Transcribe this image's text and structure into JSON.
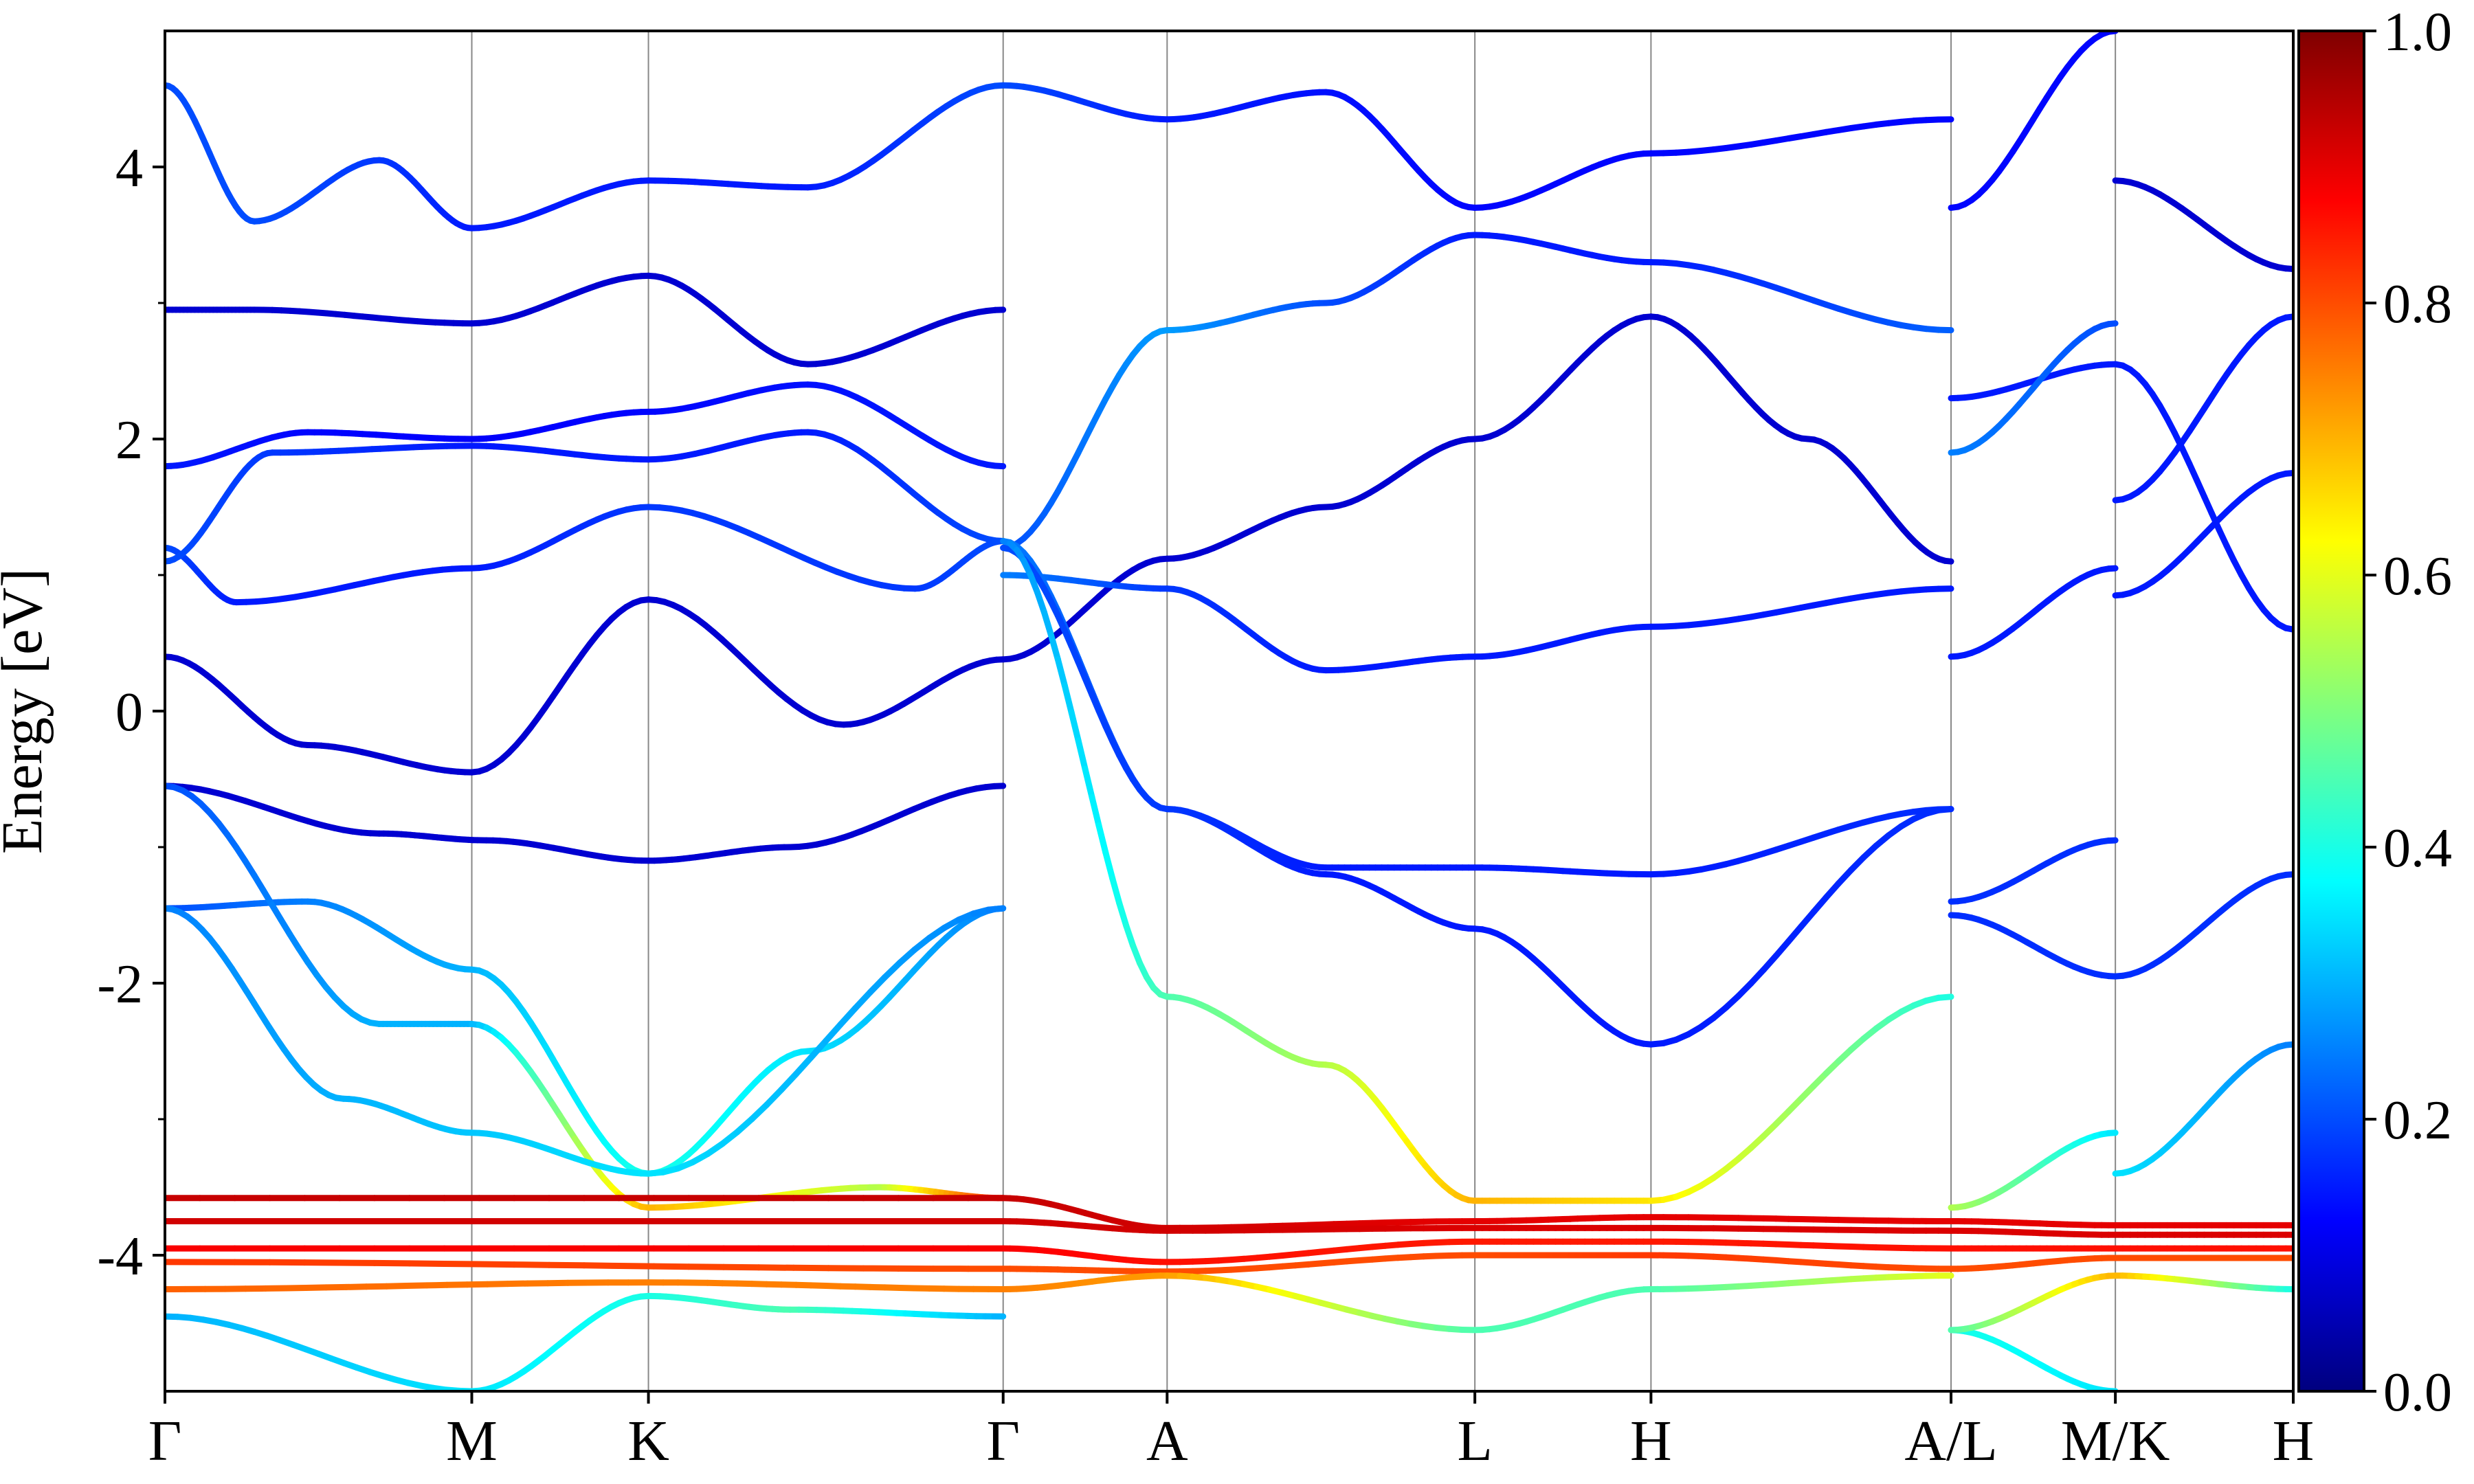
{
  "chart_data": {
    "type": "line",
    "title": "",
    "xlabel": "",
    "ylabel": "Energy [eV]",
    "ylim": [
      -5,
      5
    ],
    "y_ticks": [
      "4",
      "2",
      "0",
      "-2",
      "-4"
    ],
    "y_tick_values": [
      4,
      2,
      0,
      -2,
      -4
    ],
    "y_minor_ticks": [
      3,
      1,
      -1,
      -3
    ],
    "x_ticks": [
      "Γ",
      "M",
      "K",
      "Γ",
      "A",
      "L",
      "H",
      "A/L",
      "M/K",
      "H"
    ],
    "x_tick_positions": [
      0,
      0.1718,
      0.2707,
      0.4693,
      0.5611,
      0.7334,
      0.832,
      1.0,
      1.092,
      1.1916
    ],
    "grid": "vertical lines at high-symmetry points",
    "colormap": "jet",
    "colorbar": {
      "label": "",
      "range": [
        0.0,
        1.0
      ],
      "ticks": [
        "0.0",
        "0.2",
        "0.4",
        "0.6",
        "0.8",
        "1.0"
      ],
      "stops": [
        "#00007f",
        "#0000ff",
        "#007fff",
        "#00ffff",
        "#7fff7f",
        "#ffff00",
        "#ff7f00",
        "#ff0000",
        "#7f0000"
      ]
    },
    "series": [
      {
        "points": [
          [
            0.0,
            -0.55
          ],
          [
            0.12,
            -0.9
          ],
          [
            0.18,
            -0.95
          ],
          [
            0.2707,
            -1.1
          ],
          [
            0.35,
            -1.0
          ],
          [
            0.4693,
            -0.55
          ]
        ],
        "weight": [
          0.18,
          0.18,
          0.17,
          0.17,
          0.18,
          0.2
        ],
        "dark": true
      },
      {
        "points": [
          [
            0.0,
            0.4
          ],
          [
            0.08,
            -0.25
          ],
          [
            0.1718,
            -0.45
          ],
          [
            0.2707,
            0.82
          ],
          [
            0.38,
            -0.1
          ],
          [
            0.4693,
            0.38
          ]
        ],
        "weight": [
          0.1,
          0.1,
          0.1,
          0.1,
          0.1,
          0.1
        ],
        "dark": true
      },
      {
        "points": [
          [
            0.0,
            1.2
          ],
          [
            0.04,
            0.8
          ],
          [
            0.1718,
            1.05
          ],
          [
            0.2707,
            1.5
          ],
          [
            0.42,
            0.9
          ],
          [
            0.4693,
            1.25
          ]
        ],
        "weight": [
          0.2,
          0.15,
          0.15,
          0.18,
          0.18,
          0.2
        ]
      },
      {
        "points": [
          [
            0.0,
            1.1
          ],
          [
            0.06,
            1.9
          ],
          [
            0.1718,
            1.95
          ],
          [
            0.2707,
            1.85
          ],
          [
            0.36,
            2.05
          ],
          [
            0.4693,
            1.25
          ]
        ],
        "weight": [
          0.2,
          0.18,
          0.15,
          0.15,
          0.15,
          0.2
        ]
      },
      {
        "points": [
          [
            0.0,
            1.8
          ],
          [
            0.08,
            2.05
          ],
          [
            0.1718,
            2.0
          ],
          [
            0.2707,
            2.2
          ],
          [
            0.36,
            2.4
          ],
          [
            0.4693,
            1.8
          ]
        ],
        "weight": [
          0.15,
          0.13,
          0.12,
          0.13,
          0.14,
          0.15
        ]
      },
      {
        "points": [
          [
            0.0,
            2.95
          ],
          [
            0.05,
            2.95
          ],
          [
            0.1718,
            2.85
          ],
          [
            0.2707,
            3.2
          ],
          [
            0.36,
            2.55
          ],
          [
            0.4693,
            2.95
          ]
        ],
        "weight": [
          0.12,
          0.12,
          0.12,
          0.12,
          0.12,
          0.12
        ],
        "dark": true
      },
      {
        "points": [
          [
            0.0,
            4.6
          ],
          [
            0.05,
            3.6
          ],
          [
            0.12,
            4.05
          ],
          [
            0.1718,
            3.55
          ],
          [
            0.2707,
            3.9
          ],
          [
            0.36,
            3.85
          ],
          [
            0.4693,
            4.6
          ]
        ],
        "weight": [
          0.2,
          0.2,
          0.18,
          0.15,
          0.15,
          0.15,
          0.2
        ]
      },
      {
        "points": [
          [
            0.0,
            -1.45
          ],
          [
            0.08,
            -1.4
          ],
          [
            0.1718,
            -1.9
          ],
          [
            0.2707,
            -3.4
          ],
          [
            0.36,
            -2.5
          ],
          [
            0.4693,
            -1.45
          ]
        ],
        "weight": [
          0.2,
          0.25,
          0.3,
          0.4,
          0.35,
          0.25
        ]
      },
      {
        "points": [
          [
            0.0,
            -0.55
          ],
          [
            0.12,
            -2.3
          ],
          [
            0.1718,
            -2.3
          ],
          [
            0.2707,
            -3.65
          ],
          [
            0.4,
            -3.5
          ],
          [
            0.4693,
            -3.58
          ]
        ],
        "weight": [
          0.2,
          0.3,
          0.3,
          0.7,
          0.55,
          0.85
        ]
      },
      {
        "points": [
          [
            0.0,
            -1.45
          ],
          [
            0.1,
            -2.85
          ],
          [
            0.1718,
            -3.1
          ],
          [
            0.2707,
            -3.4
          ],
          [
            0.4693,
            -1.45
          ]
        ],
        "weight": [
          0.25,
          0.3,
          0.32,
          0.35,
          0.25
        ]
      },
      {
        "points": [
          [
            0.0,
            -3.58
          ],
          [
            0.4693,
            -3.58
          ],
          [
            0.5611,
            -3.8
          ],
          [
            0.7334,
            -3.75
          ],
          [
            0.832,
            -3.72
          ],
          [
            1.0,
            -3.75
          ],
          [
            1.092,
            -3.78
          ],
          [
            1.1916,
            -3.78
          ]
        ],
        "weight": [
          0.93,
          0.93,
          0.92,
          0.9,
          0.9,
          0.9,
          0.9,
          0.9
        ]
      },
      {
        "points": [
          [
            0.0,
            -3.75
          ],
          [
            0.4693,
            -3.75
          ],
          [
            0.5611,
            -3.82
          ],
          [
            0.7334,
            -3.8
          ],
          [
            0.832,
            -3.8
          ],
          [
            1.0,
            -3.82
          ],
          [
            1.092,
            -3.85
          ],
          [
            1.1916,
            -3.85
          ]
        ],
        "weight": [
          0.92,
          0.92,
          0.92,
          0.91,
          0.91,
          0.91,
          0.91,
          0.91
        ]
      },
      {
        "points": [
          [
            0.0,
            -3.95
          ],
          [
            0.4693,
            -3.95
          ],
          [
            0.5611,
            -4.05
          ],
          [
            0.7334,
            -3.9
          ],
          [
            0.832,
            -3.9
          ],
          [
            1.0,
            -3.95
          ],
          [
            1.092,
            -3.95
          ],
          [
            1.1916,
            -3.95
          ]
        ],
        "weight": [
          0.88,
          0.88,
          0.86,
          0.85,
          0.85,
          0.86,
          0.86,
          0.86
        ]
      },
      {
        "points": [
          [
            0.0,
            -4.05
          ],
          [
            0.4693,
            -4.1
          ],
          [
            0.5611,
            -4.12
          ],
          [
            0.7334,
            -4.0
          ],
          [
            0.832,
            -4.0
          ],
          [
            1.0,
            -4.1
          ],
          [
            1.092,
            -4.02
          ],
          [
            1.1916,
            -4.02
          ]
        ],
        "weight": [
          0.82,
          0.8,
          0.8,
          0.8,
          0.82,
          0.8,
          0.8,
          0.8
        ]
      },
      {
        "points": [
          [
            0.0,
            -4.25
          ],
          [
            0.2707,
            -4.2
          ],
          [
            0.4693,
            -4.25
          ],
          [
            0.5611,
            -4.15
          ],
          [
            0.7334,
            -4.55
          ],
          [
            0.832,
            -4.25
          ],
          [
            1.0,
            -4.15
          ]
        ],
        "weight": [
          0.78,
          0.75,
          0.75,
          0.72,
          0.45,
          0.45,
          0.6
        ]
      },
      {
        "points": [
          [
            0.0,
            -4.45
          ],
          [
            0.1718,
            -5.0
          ],
          [
            0.2707,
            -4.3
          ],
          [
            0.35,
            -4.4
          ],
          [
            0.4693,
            -4.45
          ]
        ],
        "weight": [
          0.3,
          0.35,
          0.4,
          0.45,
          0.3
        ]
      },
      {
        "points": [
          [
            0.4693,
            1.2
          ],
          [
            0.5611,
            2.8
          ],
          [
            0.65,
            3.0
          ],
          [
            0.7334,
            3.5
          ],
          [
            0.832,
            3.3
          ],
          [
            1.0,
            2.8
          ]
        ],
        "weight": [
          0.2,
          0.28,
          0.2,
          0.15,
          0.15,
          0.22
        ]
      },
      {
        "points": [
          [
            0.4693,
            0.38
          ],
          [
            0.5611,
            1.12
          ],
          [
            0.65,
            1.5
          ],
          [
            0.7334,
            2.0
          ],
          [
            0.832,
            2.9
          ],
          [
            0.92,
            2.0
          ],
          [
            1.0,
            1.1
          ]
        ],
        "weight": [
          0.15,
          0.12,
          0.12,
          0.12,
          0.1,
          0.12,
          0.12
        ],
        "dark": true
      },
      {
        "points": [
          [
            0.4693,
            1.0
          ],
          [
            0.5611,
            0.9
          ],
          [
            0.65,
            0.3
          ],
          [
            0.7334,
            0.4
          ],
          [
            0.832,
            0.62
          ],
          [
            1.0,
            0.9
          ]
        ],
        "weight": [
          0.25,
          0.18,
          0.15,
          0.15,
          0.15,
          0.15
        ]
      },
      {
        "points": [
          [
            0.4693,
            1.25
          ],
          [
            0.5611,
            -0.72
          ],
          [
            0.65,
            -1.15
          ],
          [
            0.7334,
            -1.15
          ],
          [
            0.832,
            -1.2
          ],
          [
            1.0,
            -0.72
          ]
        ],
        "weight": [
          0.25,
          0.18,
          0.15,
          0.15,
          0.15,
          0.17
        ]
      },
      {
        "points": [
          [
            0.4693,
            1.2
          ],
          [
            0.5611,
            -0.72
          ],
          [
            0.65,
            -1.2
          ],
          [
            0.7334,
            -1.6
          ],
          [
            0.832,
            -2.45
          ],
          [
            1.0,
            -0.72
          ]
        ],
        "weight": [
          0.2,
          0.18,
          0.15,
          0.15,
          0.15,
          0.17
        ]
      },
      {
        "points": [
          [
            0.4693,
            1.25
          ],
          [
            0.5611,
            -2.1
          ],
          [
            0.65,
            -2.6
          ],
          [
            0.7334,
            -3.6
          ],
          [
            0.832,
            -3.6
          ],
          [
            1.0,
            -2.1
          ]
        ],
        "weight": [
          0.25,
          0.45,
          0.55,
          0.7,
          0.65,
          0.4
        ]
      },
      {
        "points": [
          [
            0.4693,
            4.6
          ],
          [
            0.5611,
            4.35
          ],
          [
            0.65,
            4.55
          ],
          [
            0.7334,
            3.7
          ],
          [
            0.832,
            4.1
          ],
          [
            1.0,
            4.35
          ]
        ],
        "weight": [
          0.2,
          0.15,
          0.14,
          0.13,
          0.13,
          0.13
        ]
      },
      {
        "points": [
          [
            1.0,
            -4.55
          ],
          [
            1.092,
            -5.0
          ]
        ],
        "weight": [
          0.4,
          0.35
        ]
      },
      {
        "points": [
          [
            1.0,
            -4.55
          ],
          [
            1.092,
            -4.15
          ],
          [
            1.1916,
            -4.25
          ]
        ],
        "weight": [
          0.45,
          0.7,
          0.4
        ]
      },
      {
        "points": [
          [
            1.0,
            -3.65
          ],
          [
            1.092,
            -3.1
          ]
        ],
        "weight": [
          0.55,
          0.35
        ]
      },
      {
        "points": [
          [
            1.092,
            -3.4
          ],
          [
            1.1916,
            -2.45
          ]
        ],
        "weight": [
          0.35,
          0.25
        ]
      },
      {
        "points": [
          [
            1.0,
            -1.5
          ],
          [
            1.092,
            -1.95
          ],
          [
            1.1916,
            -1.2
          ]
        ],
        "weight": [
          0.17,
          0.17,
          0.17
        ]
      },
      {
        "points": [
          [
            1.0,
            -1.4
          ],
          [
            1.092,
            -0.95
          ]
        ],
        "weight": [
          0.17,
          0.17
        ]
      },
      {
        "points": [
          [
            1.0,
            0.4
          ],
          [
            1.092,
            1.05
          ]
        ],
        "weight": [
          0.15,
          0.15
        ]
      },
      {
        "points": [
          [
            1.092,
            0.85
          ],
          [
            1.1916,
            1.75
          ]
        ],
        "weight": [
          0.15,
          0.15
        ]
      },
      {
        "points": [
          [
            1.0,
            2.3
          ],
          [
            1.092,
            2.55
          ],
          [
            1.1916,
            0.6
          ]
        ],
        "weight": [
          0.15,
          0.15,
          0.15
        ]
      },
      {
        "points": [
          [
            1.0,
            1.9
          ],
          [
            1.092,
            2.85
          ]
        ],
        "weight": [
          0.25,
          0.2
        ]
      },
      {
        "points": [
          [
            1.092,
            1.55
          ],
          [
            1.1916,
            2.9
          ]
        ],
        "weight": [
          0.15,
          0.15
        ]
      },
      {
        "points": [
          [
            1.0,
            3.7
          ],
          [
            1.092,
            5.0
          ]
        ],
        "weight": [
          0.13,
          0.13
        ]
      },
      {
        "points": [
          [
            1.092,
            3.9
          ],
          [
            1.1916,
            3.25
          ]
        ],
        "weight": [
          0.12,
          0.12
        ],
        "dark": true
      }
    ]
  }
}
